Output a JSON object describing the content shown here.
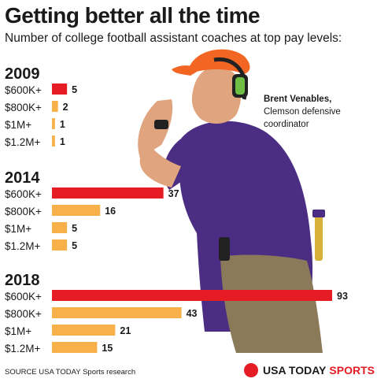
{
  "title": "Getting better all the time",
  "subtitle": "Number of college football assistant coaches at top pay levels:",
  "caption": {
    "name": "Brent Venables,",
    "role_line1": "Clemson defensive",
    "role_line2": "coordinator"
  },
  "source": "SOURCE USA TODAY Sports research",
  "brand": {
    "part1": "USA TODAY",
    "part2": "SPORTS"
  },
  "colors": {
    "red": "#e51c23",
    "orange": "#f7b04a",
    "accent_red": "#e51c23"
  },
  "chart_data": {
    "type": "bar",
    "orientation": "horizontal",
    "title": "Getting better all the time",
    "subtitle": "Number of college football assistant coaches at top pay levels:",
    "categories": [
      "$600K+",
      "$800K+",
      "$1M+",
      "$1.2M+"
    ],
    "groups": [
      {
        "year": "2009",
        "values": [
          5,
          2,
          1,
          1
        ]
      },
      {
        "year": "2014",
        "values": [
          37,
          16,
          5,
          5
        ]
      },
      {
        "year": "2018",
        "values": [
          93,
          43,
          21,
          15
        ]
      }
    ],
    "highlight_category": "$600K+",
    "xlim": [
      0,
      93
    ],
    "grid": false,
    "legend": "none"
  }
}
